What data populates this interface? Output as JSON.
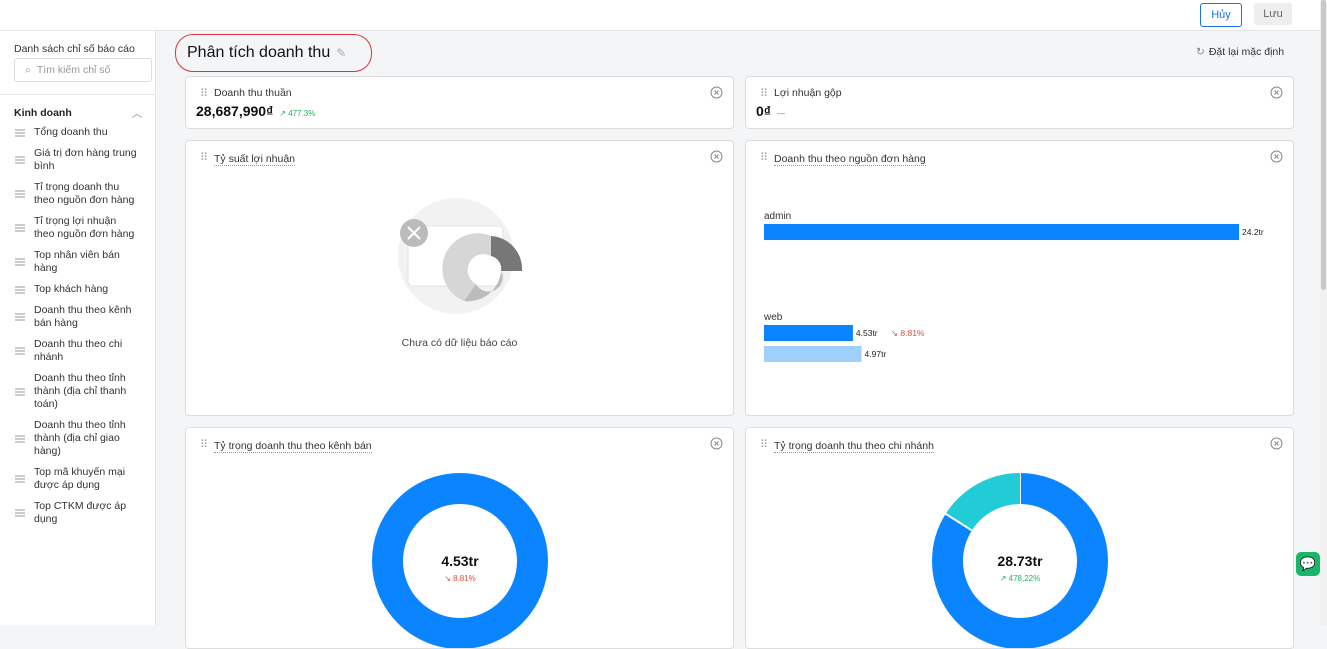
{
  "topbar": {
    "cancel": "Hủy",
    "save": "Lưu"
  },
  "sidebar": {
    "title": "Danh sách chỉ số báo cáo",
    "search_placeholder": "Tìm kiếm chỉ số",
    "group": "Kinh doanh",
    "items": [
      "Tổng doanh thu",
      "Giá trị đơn hàng trung bình",
      "Tỉ trọng doanh thu theo nguồn đơn hàng",
      "Tỉ trọng lợi nhuận theo nguồn đơn hàng",
      "Top nhân viên bán hàng",
      "Top khách hàng",
      "Doanh thu theo kênh bán hàng",
      "Doanh thu theo chi nhánh",
      "Doanh thu theo tỉnh thành (địa chỉ thanh toán)",
      "Doanh thu theo tỉnh thành (địa chỉ giao hàng)",
      "Top mã khuyến mại được áp dụng",
      "Top CTKM được áp dụng"
    ]
  },
  "report": {
    "title": "Phân tích doanh thu",
    "reset": "Đặt lại mặc định"
  },
  "kpis": [
    {
      "title": "Doanh thu thuần",
      "value": "28,687,990₫",
      "change": "↗ 477.3%"
    },
    {
      "title": "Lợi nhuận gộp",
      "value": "0₫",
      "change": "—"
    }
  ],
  "profit_margin": {
    "title": "Tỷ suất lợi nhuận",
    "empty": "Chưa có dữ liệu báo cáo"
  },
  "source_chart": {
    "type": "bar",
    "title": "Doanh thu theo nguồn đơn hàng",
    "categories": [
      "admin",
      "web"
    ],
    "series": [
      {
        "color": "#0a84ff",
        "values": [
          24.2,
          4.53
        ],
        "value_labels": [
          "24.2tr",
          "4.53tr"
        ],
        "changes": [
          null,
          "↘ 8.81%"
        ]
      },
      {
        "color": "#9fd0fb",
        "values": [
          null,
          4.97
        ],
        "value_labels": [
          null,
          "4.97tr"
        ]
      }
    ]
  },
  "channel_share": {
    "type": "pie",
    "title": "Tỷ trọng doanh thu theo kênh bán",
    "values": [
      100
    ],
    "colors": [
      "#0a84ff"
    ],
    "center_value": "4.53tr",
    "center_change": "↘ 8.81%"
  },
  "branch_share": {
    "type": "pie",
    "title": "Tỷ trọng doanh thu theo chi nhánh",
    "values": [
      84,
      16
    ],
    "colors": [
      "#0a84ff",
      "#22ccd6"
    ],
    "center_value": "28.73tr",
    "center_change": "↗ 478,22%"
  }
}
